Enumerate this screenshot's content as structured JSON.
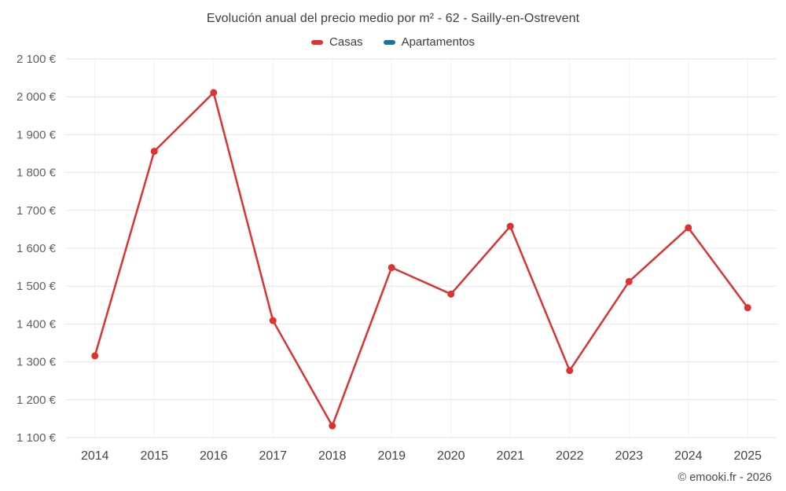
{
  "footer": {
    "credit": "© emooki.fr - 2026"
  },
  "colors": {
    "casas": "#dc3232",
    "apartamentos": "#16739f",
    "grid_h": "#e6e6e6",
    "grid_v": "#f0f0f0",
    "tick_text": "#5f5f5f",
    "xtick_text": "#444444"
  },
  "chart_data": {
    "type": "line",
    "title": "Evolución anual del precio medio por m² - 62 - Sailly-en-Ostrevent",
    "x": [
      2014,
      2015,
      2016,
      2017,
      2018,
      2019,
      2020,
      2021,
      2022,
      2023,
      2024,
      2025
    ],
    "series": [
      {
        "name": "Casas",
        "color": "#dc3232",
        "values": [
          1316,
          1856,
          2011,
          1409,
          1131,
          1549,
          1479,
          1658,
          1277,
          1512,
          1654,
          1443
        ]
      },
      {
        "name": "Apartamentos",
        "color": "#16739f",
        "values": []
      }
    ],
    "ylabel": "",
    "xlabel": "",
    "ylim": [
      1100,
      2100
    ],
    "ytick_step": 100,
    "ytick_suffix": " €",
    "grid": true,
    "legend_position": "top"
  }
}
